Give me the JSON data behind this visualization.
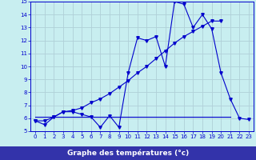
{
  "xlabel": "Graphe des températures (°c)",
  "hours": [
    0,
    1,
    2,
    3,
    4,
    5,
    6,
    7,
    8,
    9,
    10,
    11,
    12,
    13,
    14,
    15,
    16,
    17,
    18,
    19,
    20,
    21,
    22,
    23
  ],
  "line1": [
    5.8,
    5.5,
    6.1,
    6.5,
    6.5,
    6.3,
    6.1,
    5.3,
    6.2,
    5.3,
    9.5,
    12.2,
    12.0,
    12.3,
    10.0,
    15.0,
    14.8,
    13.0,
    14.0,
    12.9,
    9.5,
    7.5,
    6.0,
    5.9
  ],
  "line2": [
    5.8,
    5.8,
    6.1,
    6.5,
    6.6,
    6.8,
    7.2,
    7.5,
    7.9,
    8.4,
    8.9,
    9.5,
    10.0,
    10.6,
    11.2,
    11.8,
    12.3,
    12.7,
    13.1,
    13.5,
    13.5,
    null,
    null,
    null
  ],
  "line3": [
    6.1,
    6.1,
    6.1,
    6.1,
    6.1,
    6.1,
    6.1,
    6.1,
    6.1,
    6.1,
    6.1,
    6.1,
    6.1,
    6.1,
    6.1,
    6.1,
    6.1,
    6.1,
    6.1,
    6.1,
    6.1,
    6.1,
    null,
    null
  ],
  "line_color": "#0000cc",
  "bg_color": "#c8eef0",
  "grid_color": "#b0d0d8",
  "axis_label_color": "#0000cc",
  "bottom_bar_color": "#3333aa",
  "ylim": [
    5,
    15
  ],
  "xlim": [
    -0.5,
    23.5
  ],
  "yticks": [
    5,
    6,
    7,
    8,
    9,
    10,
    11,
    12,
    13,
    14,
    15
  ],
  "xticks": [
    0,
    1,
    2,
    3,
    4,
    5,
    6,
    7,
    8,
    9,
    10,
    11,
    12,
    13,
    14,
    15,
    16,
    17,
    18,
    19,
    20,
    21,
    22,
    23
  ],
  "tick_fontsize": 5.0,
  "xlabel_fontsize": 6.5
}
